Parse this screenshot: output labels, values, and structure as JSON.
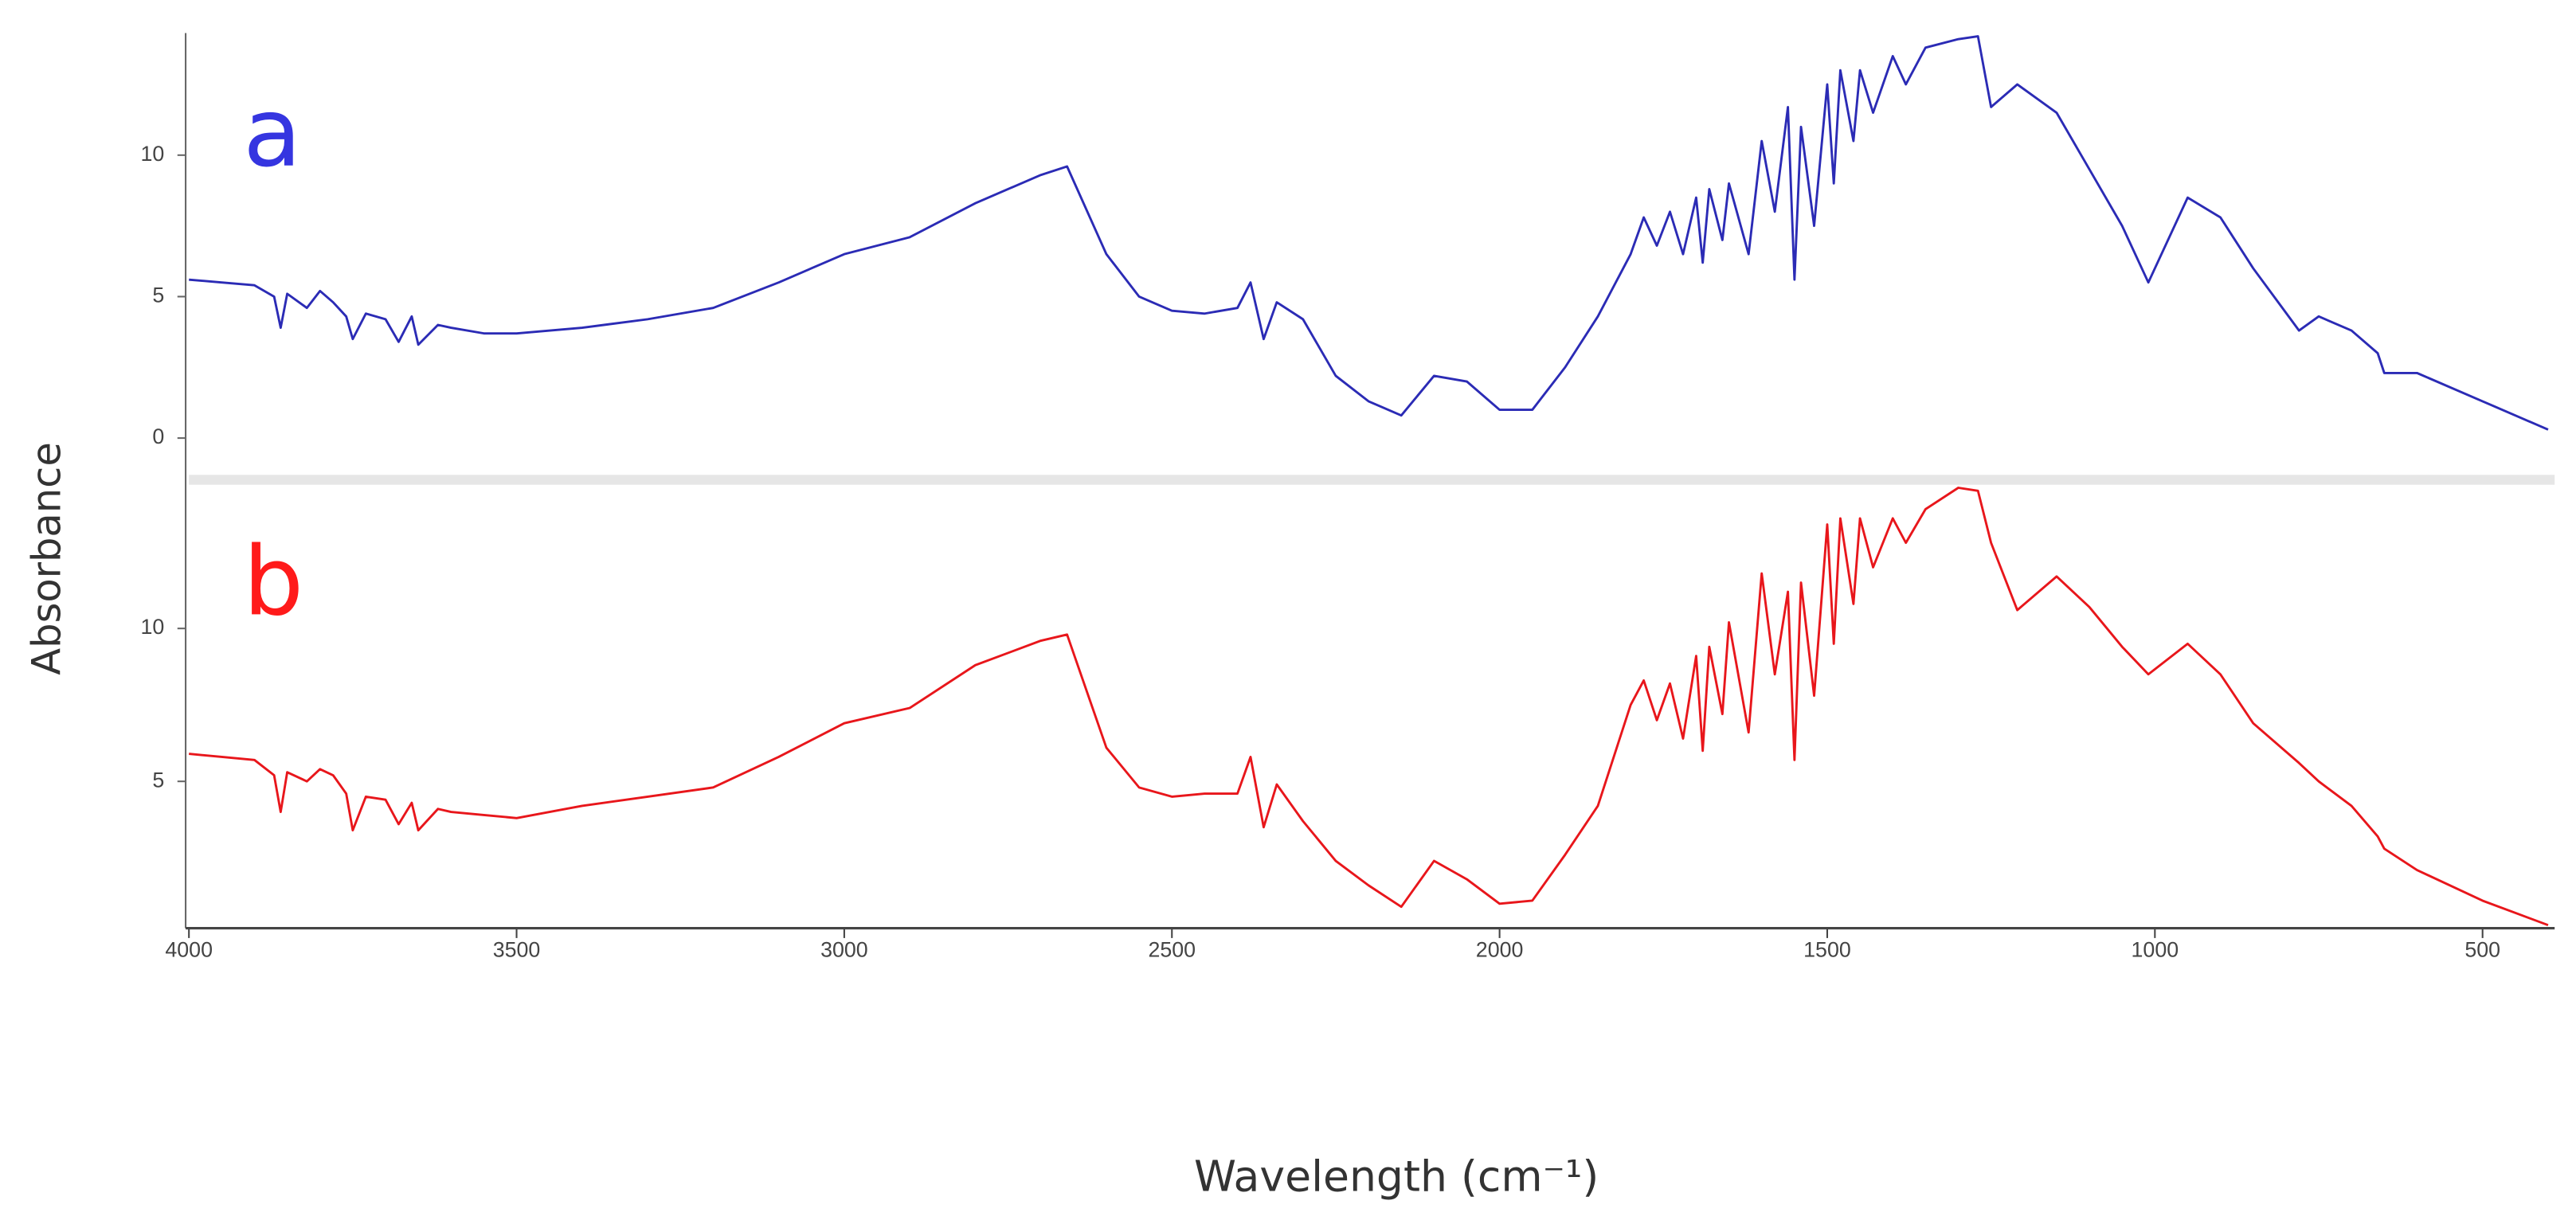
{
  "chart_data": [
    {
      "type": "line",
      "label": "a",
      "label_color": "#3535e0",
      "x": [
        4000,
        3950,
        3900,
        3870,
        3860,
        3850,
        3820,
        3800,
        3780,
        3760,
        3750,
        3730,
        3700,
        3680,
        3660,
        3650,
        3620,
        3600,
        3550,
        3500,
        3400,
        3300,
        3200,
        3100,
        3000,
        2900,
        2800,
        2700,
        2660,
        2600,
        2550,
        2500,
        2450,
        2400,
        2380,
        2360,
        2340,
        2300,
        2250,
        2200,
        2150,
        2100,
        2050,
        2000,
        1950,
        1900,
        1850,
        1800,
        1780,
        1760,
        1740,
        1720,
        1700,
        1690,
        1680,
        1660,
        1650,
        1620,
        1600,
        1580,
        1560,
        1550,
        1540,
        1520,
        1500,
        1490,
        1480,
        1460,
        1450,
        1430,
        1400,
        1380,
        1350,
        1300,
        1270,
        1250,
        1210,
        1150,
        1100,
        1050,
        1010,
        950,
        900,
        850,
        780,
        750,
        700,
        660,
        650,
        600,
        500,
        400
      ],
      "series": [
        {
          "color": "#2b2bb5",
          "values": [
            5.6,
            5.5,
            5.4,
            5.0,
            3.9,
            5.1,
            4.6,
            5.2,
            4.8,
            4.3,
            3.5,
            4.4,
            4.2,
            3.4,
            4.3,
            3.3,
            4.0,
            3.9,
            3.7,
            3.7,
            3.9,
            4.2,
            4.6,
            5.5,
            6.5,
            7.1,
            8.3,
            9.3,
            9.6,
            6.5,
            5.0,
            4.5,
            4.4,
            4.6,
            5.5,
            3.5,
            4.8,
            4.2,
            2.2,
            1.3,
            0.8,
            2.2,
            2.0,
            1.0,
            1.0,
            2.5,
            4.3,
            6.5,
            7.8,
            6.8,
            8.0,
            6.5,
            8.5,
            6.2,
            8.8,
            7.0,
            9.0,
            6.5,
            10.5,
            8.0,
            11.7,
            5.6,
            11.0,
            7.5,
            12.5,
            9.0,
            13.0,
            10.5,
            13.0,
            11.5,
            13.5,
            12.5,
            13.8,
            14.1,
            14.2,
            11.7,
            12.5,
            11.5,
            9.5,
            7.5,
            5.5,
            8.5,
            7.8,
            6.0,
            3.8,
            4.3,
            3.8,
            3.0,
            2.3,
            2.3,
            1.3,
            0.3
          ]
        }
      ],
      "xlim": [
        4000,
        390
      ],
      "ylim": [
        -1.3,
        14.2
      ],
      "yticks": [
        0,
        5,
        10
      ]
    },
    {
      "type": "line",
      "label": "b",
      "label_color": "#ff1a1a",
      "x": [
        4000,
        3950,
        3900,
        3870,
        3860,
        3850,
        3820,
        3800,
        3780,
        3760,
        3750,
        3730,
        3700,
        3680,
        3660,
        3650,
        3620,
        3600,
        3550,
        3500,
        3400,
        3300,
        3200,
        3100,
        3000,
        2900,
        2800,
        2700,
        2660,
        2600,
        2550,
        2500,
        2450,
        2400,
        2380,
        2360,
        2340,
        2300,
        2250,
        2200,
        2150,
        2100,
        2050,
        2000,
        1950,
        1900,
        1850,
        1800,
        1780,
        1760,
        1740,
        1720,
        1700,
        1690,
        1680,
        1660,
        1650,
        1620,
        1600,
        1580,
        1560,
        1550,
        1540,
        1520,
        1500,
        1490,
        1480,
        1460,
        1450,
        1430,
        1400,
        1380,
        1350,
        1300,
        1270,
        1250,
        1210,
        1150,
        1100,
        1050,
        1010,
        950,
        900,
        850,
        780,
        750,
        700,
        660,
        650,
        600,
        500,
        400
      ],
      "series": [
        {
          "color": "#e8161b",
          "values": [
            5.9,
            5.8,
            5.7,
            5.2,
            4.0,
            5.3,
            5.0,
            5.4,
            5.2,
            4.6,
            3.4,
            4.5,
            4.4,
            3.6,
            4.3,
            3.4,
            4.1,
            4.0,
            3.9,
            3.8,
            4.2,
            4.5,
            4.8,
            5.8,
            6.9,
            7.4,
            8.8,
            9.6,
            9.8,
            6.1,
            4.8,
            4.5,
            4.6,
            4.6,
            5.8,
            3.5,
            4.9,
            3.7,
            2.4,
            1.6,
            0.9,
            2.4,
            1.8,
            1.0,
            1.1,
            2.6,
            4.2,
            7.5,
            8.3,
            7.0,
            8.2,
            6.4,
            9.1,
            6.0,
            9.4,
            7.2,
            10.2,
            6.6,
            11.8,
            8.5,
            11.2,
            5.7,
            11.5,
            7.8,
            13.4,
            9.5,
            13.6,
            10.8,
            13.6,
            12.0,
            13.6,
            12.8,
            13.9,
            14.6,
            14.5,
            12.8,
            10.6,
            11.7,
            10.7,
            9.4,
            8.5,
            9.5,
            8.5,
            6.9,
            5.6,
            5.0,
            4.2,
            3.2,
            2.8,
            2.1,
            1.1,
            0.3
          ]
        }
      ],
      "xlim": [
        4000,
        390
      ],
      "ylim": [
        0.2,
        14.7
      ],
      "yticks": [
        5,
        10
      ],
      "xticks": [
        4000,
        3500,
        3000,
        2500,
        2000,
        1500,
        1000,
        500
      ],
      "xlabel": "Wavelength (cm⁻¹)",
      "ylabel": "Absorbance"
    }
  ]
}
